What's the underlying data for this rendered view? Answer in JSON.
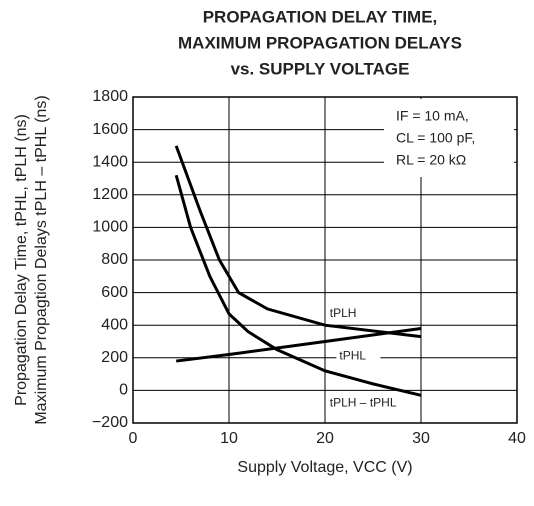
{
  "chart_data": {
    "type": "line",
    "title": [
      "PROPAGATION DELAY TIME,",
      "MAXIMUM PROPAGATION DELAYS",
      "vs. SUPPLY VOLTAGE"
    ],
    "ylabel": [
      "Propagation Delay Time, tPHL, tPLH (ns)",
      "Maximum Propagtion Delays tPLH – tPHL (ns)"
    ],
    "xlabel": "Supply Voltage, VCC (V)",
    "annotation": [
      "IF = 10 mA,",
      "CL = 100 pF,",
      "RL = 20 kΩ"
    ],
    "xlim": [
      0,
      40
    ],
    "xticks": [
      0,
      10,
      20,
      30,
      40
    ],
    "ylim": [
      -200,
      1800
    ],
    "yticks": [
      {
        "value": -200,
        "label": "−200"
      },
      0,
      200,
      400,
      600,
      800,
      1000,
      1200,
      1400,
      1600,
      1800
    ],
    "grid": true,
    "series": [
      {
        "name": "tPLH",
        "color": "#000000",
        "x": [
          4.5,
          7,
          9,
          11,
          14,
          20,
          30
        ],
        "values": [
          1500,
          1100,
          800,
          600,
          500,
          400,
          330
        ]
      },
      {
        "name": "tPHL",
        "color": "#000000",
        "x": [
          4.5,
          10,
          20,
          30
        ],
        "values": [
          180,
          220,
          300,
          380
        ]
      },
      {
        "name": "tPLH – tPHL",
        "color": "#000000",
        "x": [
          4.5,
          6,
          8,
          10,
          12,
          15,
          20,
          25,
          30
        ],
        "values": [
          1320,
          1000,
          700,
          470,
          360,
          250,
          120,
          40,
          -30
        ]
      }
    ]
  }
}
